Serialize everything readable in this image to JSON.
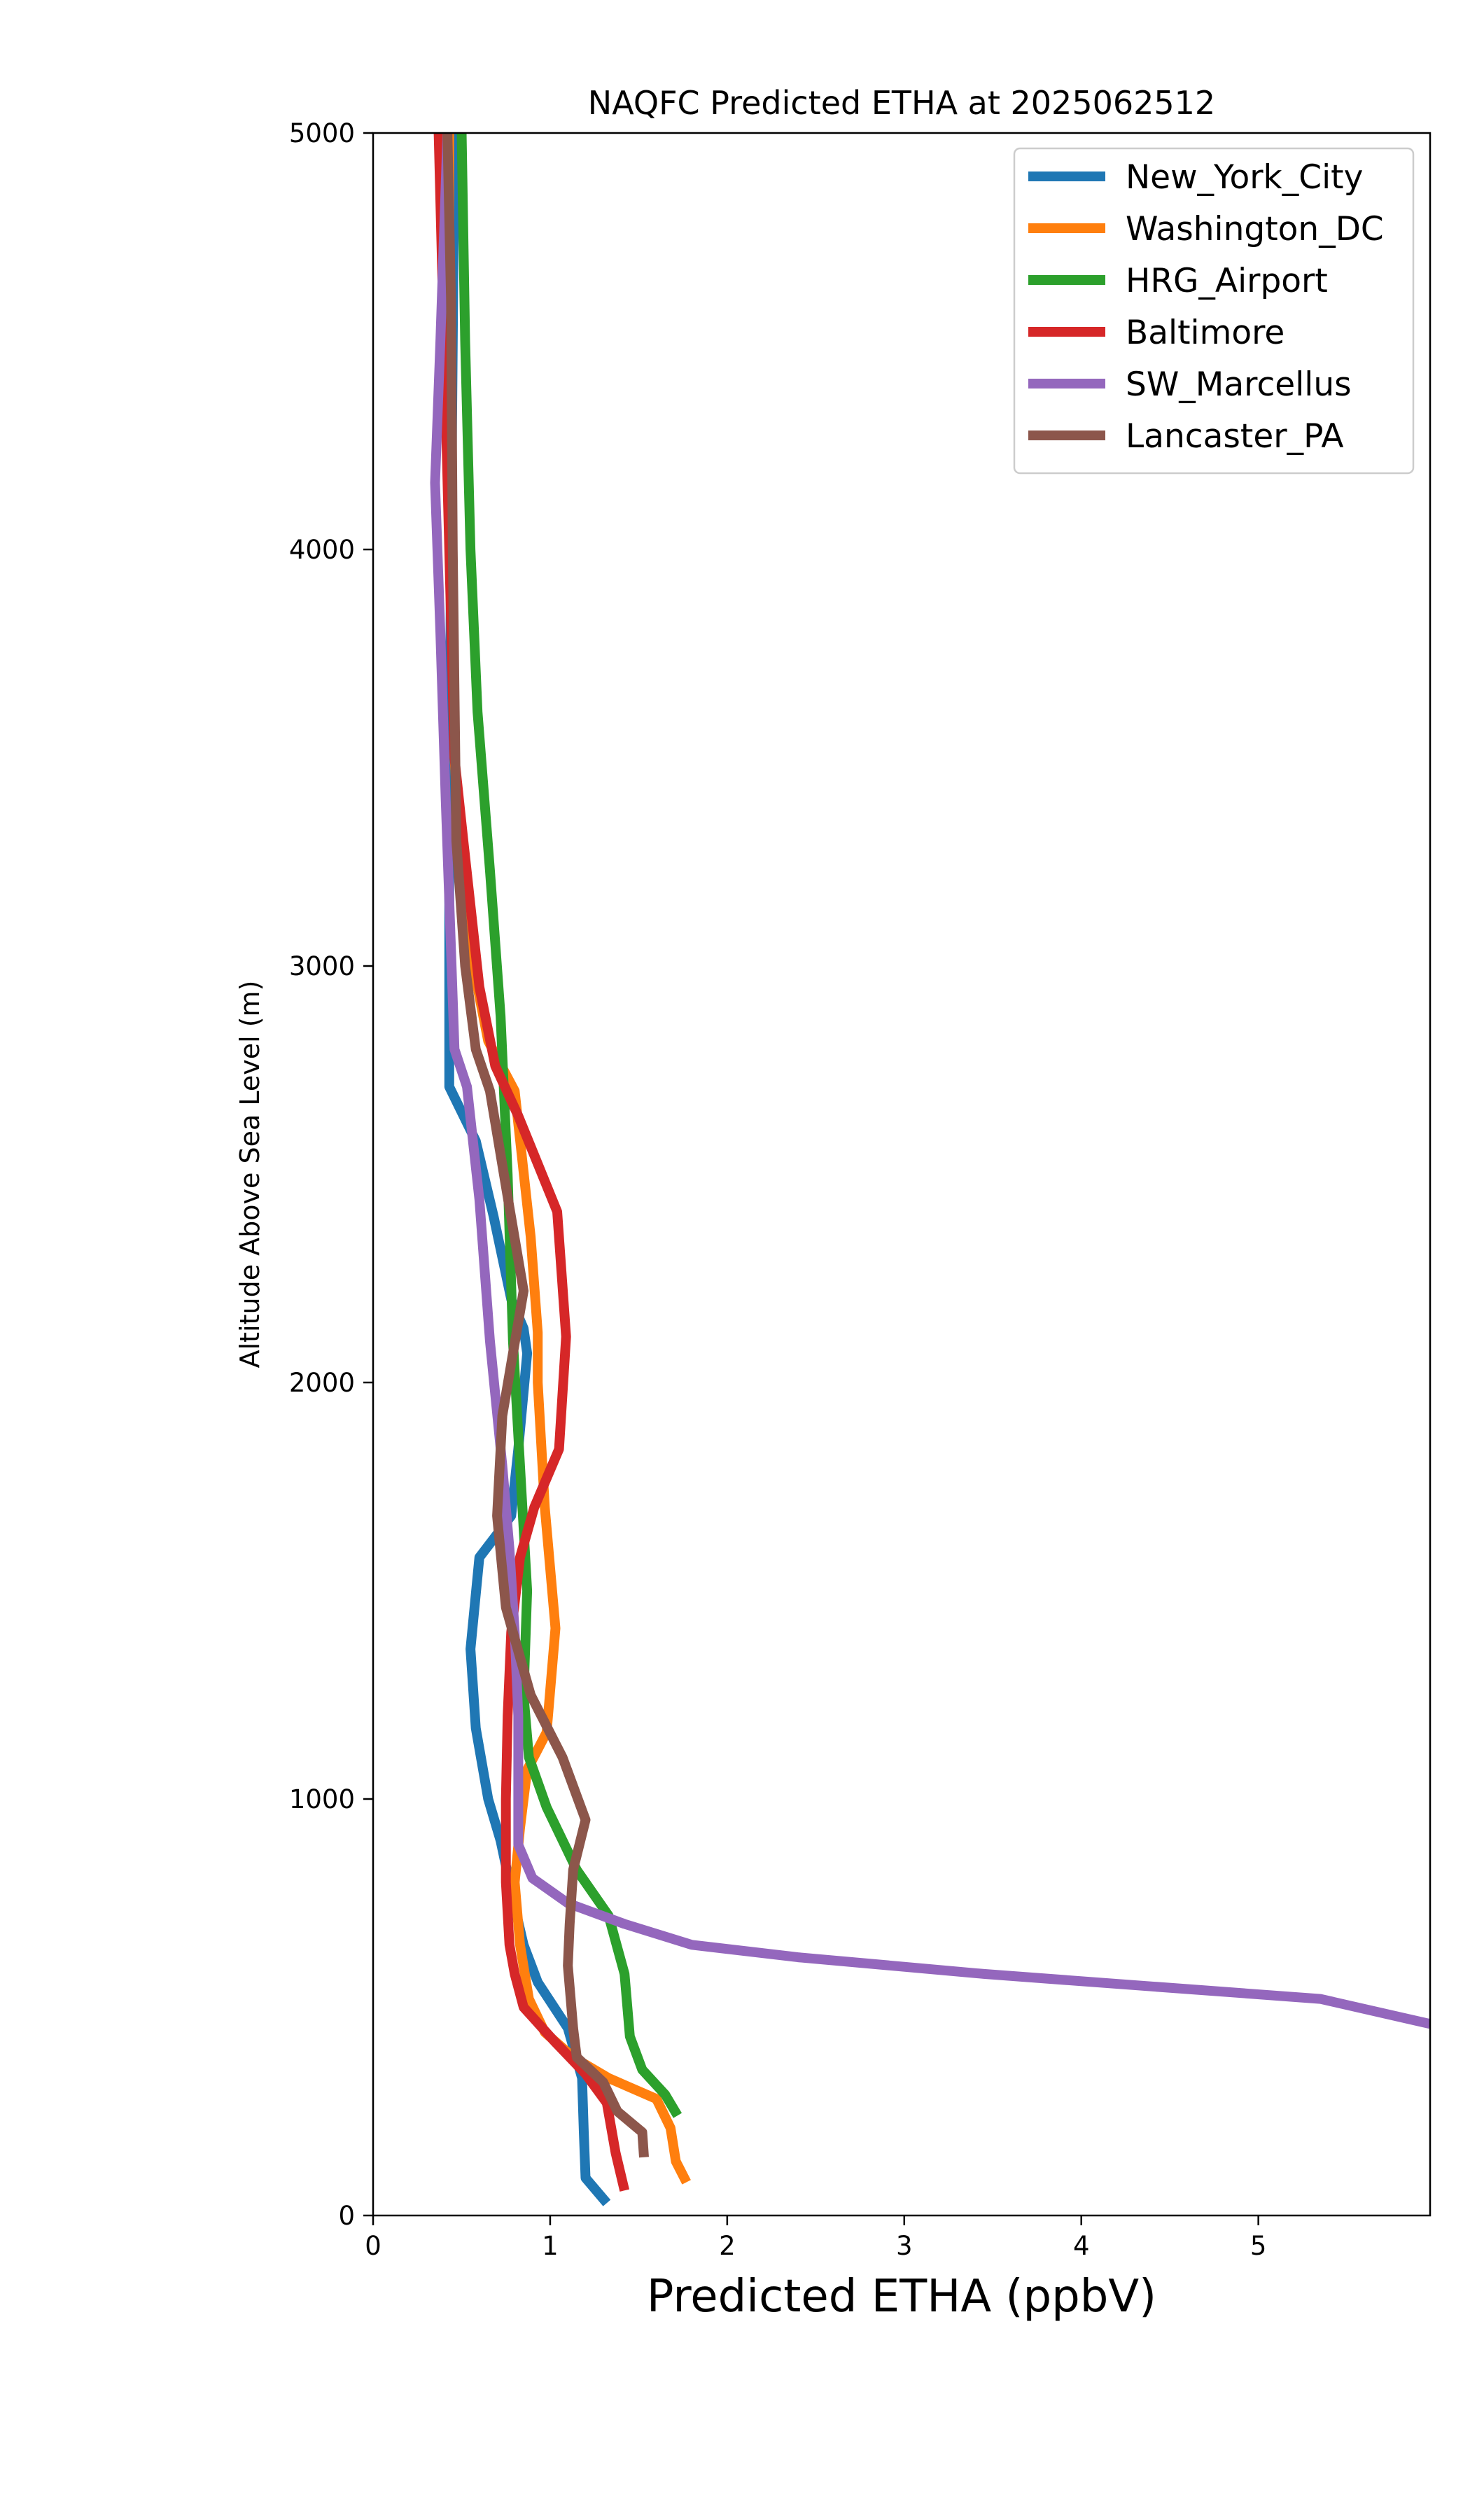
{
  "chart_data": {
    "type": "line",
    "title": "NAQFC Predicted ETHA at 2025062512",
    "xlabel": "Predicted ETHA (ppbV)",
    "ylabel": "Altitude Above Sea Level (m)",
    "xlim": [
      0,
      5.97
    ],
    "ylim": [
      0,
      5000
    ],
    "xticks": [
      0,
      1,
      2,
      3,
      4,
      5
    ],
    "yticks": [
      0,
      1000,
      2000,
      3000,
      4000,
      5000
    ],
    "grid": false,
    "legend_position": "top-right",
    "series": [
      {
        "name": "New_York_City",
        "color": "#1f77b4",
        "points": [
          [
            1.32,
            30
          ],
          [
            1.2,
            90
          ],
          [
            1.19,
            200
          ],
          [
            1.18,
            330
          ],
          [
            1.1,
            450
          ],
          [
            0.93,
            560
          ],
          [
            0.85,
            650
          ],
          [
            0.79,
            760
          ],
          [
            0.72,
            900
          ],
          [
            0.65,
            1000
          ],
          [
            0.58,
            1170
          ],
          [
            0.55,
            1360
          ],
          [
            0.6,
            1580
          ],
          [
            0.78,
            1680
          ],
          [
            0.82,
            1840
          ],
          [
            0.87,
            2070
          ],
          [
            0.85,
            2130
          ],
          [
            0.78,
            2200
          ],
          [
            0.68,
            2400
          ],
          [
            0.58,
            2580
          ],
          [
            0.43,
            2710
          ],
          [
            0.43,
            3300
          ],
          [
            0.44,
            4000
          ],
          [
            0.45,
            4500
          ],
          [
            0.46,
            5000
          ]
        ]
      },
      {
        "name": "Washington_DC",
        "color": "#ff7f0e",
        "points": [
          [
            1.77,
            80
          ],
          [
            1.71,
            130
          ],
          [
            1.68,
            210
          ],
          [
            1.6,
            280
          ],
          [
            1.33,
            330
          ],
          [
            1.13,
            380
          ],
          [
            0.97,
            440
          ],
          [
            0.88,
            520
          ],
          [
            0.83,
            650
          ],
          [
            0.8,
            800
          ],
          [
            0.83,
            930
          ],
          [
            0.87,
            1070
          ],
          [
            0.98,
            1160
          ],
          [
            1.03,
            1410
          ],
          [
            0.97,
            1700
          ],
          [
            0.93,
            2000
          ],
          [
            0.93,
            2120
          ],
          [
            0.89,
            2350
          ],
          [
            0.8,
            2700
          ],
          [
            0.65,
            2820
          ],
          [
            0.52,
            3100
          ],
          [
            0.46,
            3500
          ],
          [
            0.44,
            4000
          ],
          [
            0.43,
            4500
          ],
          [
            0.43,
            5000
          ]
        ]
      },
      {
        "name": "HRG_Airport",
        "color": "#2ca02c",
        "points": [
          [
            1.72,
            240
          ],
          [
            1.65,
            290
          ],
          [
            1.52,
            350
          ],
          [
            1.45,
            430
          ],
          [
            1.42,
            580
          ],
          [
            1.33,
            720
          ],
          [
            1.15,
            830
          ],
          [
            0.98,
            980
          ],
          [
            0.88,
            1100
          ],
          [
            0.85,
            1250
          ],
          [
            0.87,
            1500
          ],
          [
            0.83,
            1800
          ],
          [
            0.79,
            2100
          ],
          [
            0.76,
            2500
          ],
          [
            0.72,
            2880
          ],
          [
            0.66,
            3230
          ],
          [
            0.59,
            3610
          ],
          [
            0.55,
            4000
          ],
          [
            0.52,
            4500
          ],
          [
            0.5,
            5000
          ]
        ]
      },
      {
        "name": "Baltimore",
        "color": "#d62728",
        "points": [
          [
            1.42,
            60
          ],
          [
            1.37,
            150
          ],
          [
            1.32,
            270
          ],
          [
            1.2,
            340
          ],
          [
            1.02,
            420
          ],
          [
            0.85,
            500
          ],
          [
            0.8,
            580
          ],
          [
            0.77,
            650
          ],
          [
            0.75,
            800
          ],
          [
            0.75,
            1000
          ],
          [
            0.76,
            1200
          ],
          [
            0.78,
            1400
          ],
          [
            0.83,
            1580
          ],
          [
            0.91,
            1700
          ],
          [
            1.05,
            1840
          ],
          [
            1.09,
            2110
          ],
          [
            1.04,
            2410
          ],
          [
            0.82,
            2640
          ],
          [
            0.69,
            2760
          ],
          [
            0.6,
            2950
          ],
          [
            0.51,
            3300
          ],
          [
            0.46,
            3500
          ],
          [
            0.43,
            4000
          ],
          [
            0.4,
            4500
          ],
          [
            0.37,
            5000
          ]
        ]
      },
      {
        "name": "SW_Marcellus",
        "color": "#9467bd",
        "points": [
          [
            5.97,
            460
          ],
          [
            5.35,
            520
          ],
          [
            4.4,
            550
          ],
          [
            3.45,
            580
          ],
          [
            2.4,
            620
          ],
          [
            1.8,
            650
          ],
          [
            1.42,
            700
          ],
          [
            1.1,
            750
          ],
          [
            0.9,
            810
          ],
          [
            0.82,
            890
          ],
          [
            0.82,
            1200
          ],
          [
            0.8,
            1400
          ],
          [
            0.77,
            1600
          ],
          [
            0.73,
            1800
          ],
          [
            0.66,
            2100
          ],
          [
            0.6,
            2440
          ],
          [
            0.53,
            2710
          ],
          [
            0.46,
            2800
          ],
          [
            0.41,
            3400
          ],
          [
            0.38,
            3800
          ],
          [
            0.35,
            4160
          ],
          [
            0.38,
            4500
          ],
          [
            0.42,
            5000
          ]
        ]
      },
      {
        "name": "Lancaster_PA",
        "color": "#8c564b",
        "points": [
          [
            1.53,
            140
          ],
          [
            1.52,
            200
          ],
          [
            1.38,
            250
          ],
          [
            1.3,
            320
          ],
          [
            1.15,
            380
          ],
          [
            1.13,
            450
          ],
          [
            1.1,
            600
          ],
          [
            1.11,
            700
          ],
          [
            1.13,
            830
          ],
          [
            1.2,
            950
          ],
          [
            1.07,
            1100
          ],
          [
            0.89,
            1250
          ],
          [
            0.75,
            1460
          ],
          [
            0.7,
            1680
          ],
          [
            0.73,
            1920
          ],
          [
            0.85,
            2220
          ],
          [
            0.77,
            2420
          ],
          [
            0.66,
            2700
          ],
          [
            0.58,
            2800
          ],
          [
            0.52,
            3000
          ],
          [
            0.47,
            3300
          ],
          [
            0.45,
            4000
          ],
          [
            0.44,
            4600
          ],
          [
            0.42,
            5000
          ]
        ]
      }
    ]
  }
}
